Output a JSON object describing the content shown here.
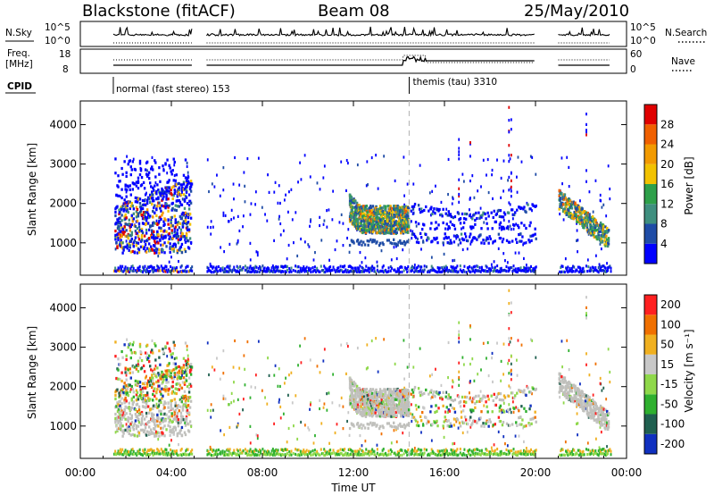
{
  "header": {
    "radar": "Blackstone (fitACF)",
    "beam": "Beam 08",
    "date": "25/May/2010"
  },
  "panels": {
    "nsky_label": "N.Sky",
    "nsearch_label": "N.Search",
    "freq_label_line1": "Freq.",
    "freq_label_line2": "[MHz]",
    "nave_label": "Nave",
    "cpid_label": "CPID",
    "log_tick_high": "10^5",
    "log_tick_low": "10^0",
    "freq_ticks": [
      "18",
      "8"
    ],
    "nave_ticks": [
      "60",
      "0"
    ],
    "cpid_segments": [
      {
        "start": 1.45,
        "label": "normal (fast stereo) 153"
      },
      {
        "start": 14.45,
        "label": "themis (tau) 3310"
      }
    ]
  },
  "colors": {
    "power": [
      "#0000ff",
      "#1f4ca6",
      "#3f8f7f",
      "#2ea04a",
      "#f2c200",
      "#f29a00",
      "#f06000",
      "#e00000"
    ],
    "velocity": [
      "#1030c0",
      "#206050",
      "#2fb02f",
      "#8fd84a",
      "#c8c8c8",
      "#f0b020",
      "#f07000",
      "#ff2020"
    ],
    "ground_scatter": "#c0c0bc",
    "dashed_line": "#bbbbbb"
  },
  "chart_data": [
    {
      "type": "heatmap",
      "name": "power",
      "ylabel": "Slant Range [km]",
      "xlabel": "Time UT",
      "xlim": [
        0,
        24
      ],
      "ylim": [
        180,
        4600
      ],
      "xticks": [
        "00:00",
        "04:00",
        "08:00",
        "12:00",
        "16:00",
        "20:00",
        "00:00"
      ],
      "yticks": [
        1000,
        2000,
        3000,
        4000
      ],
      "colorbar_label": "Power [dB]",
      "colorbar_ticks": [
        4,
        8,
        12,
        16,
        20,
        24,
        28
      ],
      "data_gaps": [
        [
          0,
          1.45
        ],
        [
          4.9,
          5.5
        ],
        [
          20.0,
          21.0
        ],
        [
          23.3,
          24
        ]
      ],
      "echo_regions": [
        {
          "t0": 1.5,
          "t1": 4.8,
          "r0": 200,
          "r1": 3100,
          "level": "mixed"
        },
        {
          "t0": 11.8,
          "t1": 14.4,
          "r0": 1200,
          "r1": 1900,
          "level": "high"
        },
        {
          "t0": 14.5,
          "t1": 20.0,
          "r0": 900,
          "r1": 2200,
          "level": "low"
        },
        {
          "t0": 21.0,
          "t1": 23.2,
          "r0": 800,
          "r1": 2100,
          "level": "high"
        }
      ]
    },
    {
      "type": "heatmap",
      "name": "velocity",
      "ylabel": "Slant Range [km]",
      "xlabel": "Time UT",
      "xlim": [
        0,
        24
      ],
      "ylim": [
        180,
        4600
      ],
      "xticks": [
        "00:00",
        "04:00",
        "08:00",
        "12:00",
        "16:00",
        "20:00",
        "00:00"
      ],
      "yticks": [
        1000,
        2000,
        3000,
        4000
      ],
      "colorbar_label": "Velocity [m s⁻¹]",
      "colorbar_ticks": [
        "200",
        "100",
        "50",
        "15",
        "-15",
        "-50",
        "-100",
        "-200"
      ],
      "cpid_change_time": 14.45
    }
  ]
}
